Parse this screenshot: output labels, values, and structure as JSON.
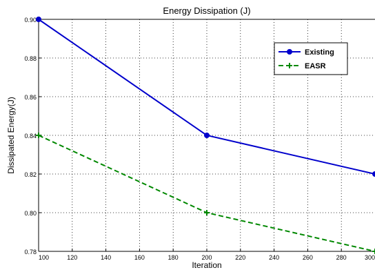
{
  "chart_data": {
    "type": "line",
    "title": "Energy Dissipation (J)",
    "xlabel": "Iteration",
    "ylabel": "Dissipated Energy(J)",
    "x": [
      100,
      200,
      300
    ],
    "xlim": [
      100,
      300
    ],
    "ylim": [
      0.78,
      0.9
    ],
    "xticks": [
      "100",
      "120",
      "140",
      "160",
      "180",
      "200",
      "220",
      "240",
      "260",
      "280",
      "300"
    ],
    "yticks": [
      "0.78",
      "0.80",
      "0.82",
      "0.84",
      "0.86",
      "0.88",
      "0.90"
    ],
    "grid": true,
    "legend_position": "top-right",
    "series": [
      {
        "name": "Existing",
        "values": [
          0.9,
          0.84,
          0.82
        ],
        "color": "#0000cc",
        "line_style": "solid",
        "marker": "circle"
      },
      {
        "name": "EASR",
        "values": [
          0.84,
          0.8,
          0.78
        ],
        "color": "#008800",
        "line_style": "dashed",
        "marker": "plus"
      }
    ]
  }
}
